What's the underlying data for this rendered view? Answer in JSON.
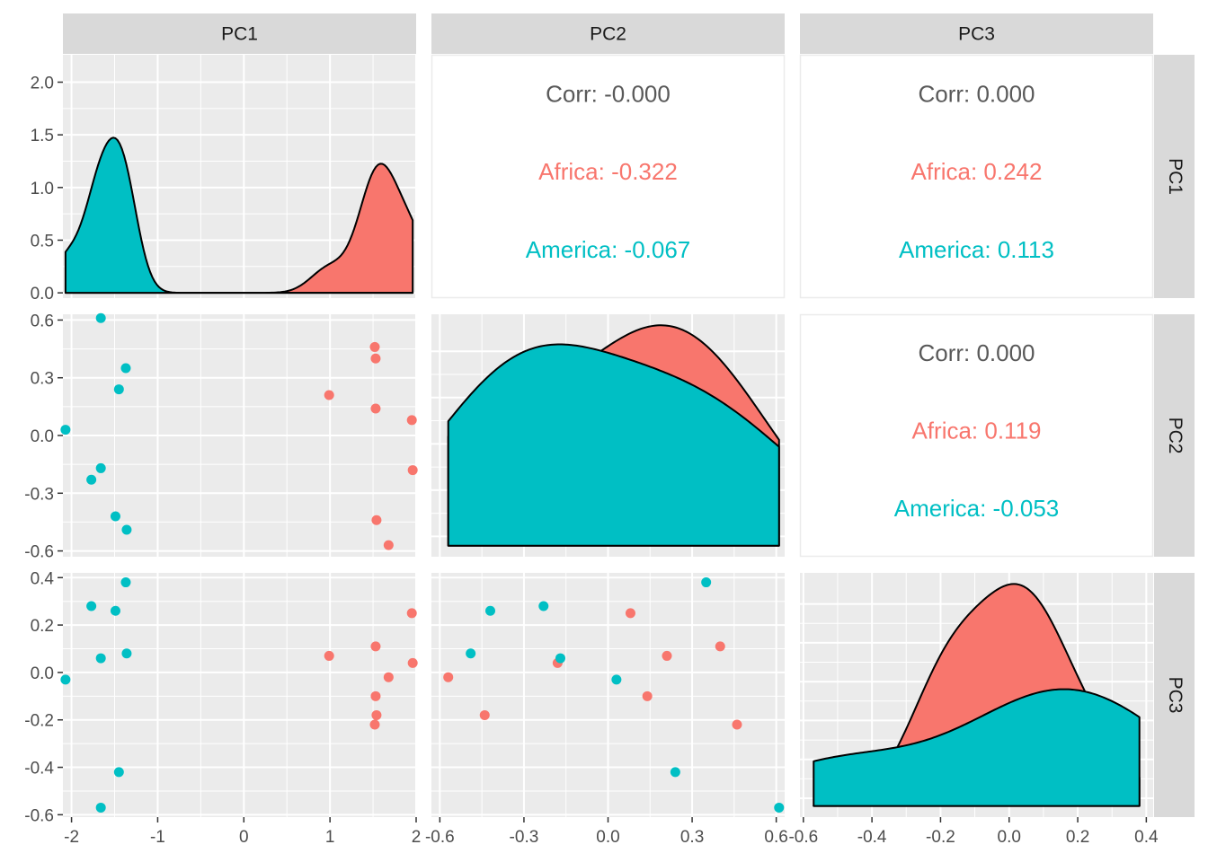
{
  "chart_data": {
    "type": "scatter",
    "variables": [
      "PC1",
      "PC2",
      "PC3"
    ],
    "groups": [
      {
        "name": "Africa",
        "color": "#F8766D"
      },
      {
        "name": "America",
        "color": "#00BFC4"
      }
    ],
    "axes": {
      "PC1": {
        "ticks": [
          -2,
          -1,
          0,
          1,
          2
        ],
        "tick_labels": [
          "-2",
          "-1",
          "0",
          "1",
          "2"
        ],
        "range": [
          -2.1,
          2.0
        ]
      },
      "PC2": {
        "ticks": [
          -0.6,
          -0.3,
          0.0,
          0.3,
          0.6
        ],
        "tick_labels": [
          "-0.6",
          "-0.3",
          "0.0",
          "0.3",
          "0.6"
        ],
        "range": [
          -0.63,
          0.63
        ]
      },
      "PC3": {
        "ticks": [
          -0.6,
          -0.4,
          -0.2,
          0.0,
          0.2,
          0.4
        ],
        "tick_labels": [
          "-0.6",
          "-0.4",
          "-0.2",
          "0.0",
          "0.2",
          "0.4"
        ],
        "range": [
          -0.61,
          0.42
        ]
      },
      "density": {
        "ticks": [
          0,
          0.5,
          1.0,
          1.5,
          2.0
        ],
        "tick_labels": [
          "0.0",
          "0.5",
          "1.0",
          "1.5",
          "2.0"
        ],
        "range": [
          -0.05,
          2.26
        ]
      }
    },
    "correlations": [
      {
        "row": "PC1",
        "col": "PC2",
        "overall": "Corr: -0.000",
        "groups": [
          "Africa: -0.322",
          "America: -0.067"
        ]
      },
      {
        "row": "PC1",
        "col": "PC3",
        "overall": "Corr: 0.000",
        "groups": [
          "Africa: 0.242",
          "America: 0.113"
        ]
      },
      {
        "row": "PC2",
        "col": "PC3",
        "overall": "Corr: 0.000",
        "groups": [
          "Africa: 0.119",
          "America: -0.053"
        ]
      }
    ],
    "points": [
      {
        "group": "Africa",
        "PC1": 0.99,
        "PC2": 0.21,
        "PC3": 0.07
      },
      {
        "group": "Africa",
        "PC1": 1.52,
        "PC2": 0.46,
        "PC3": -0.22
      },
      {
        "group": "Africa",
        "PC1": 1.53,
        "PC2": 0.4,
        "PC3": 0.11
      },
      {
        "group": "Africa",
        "PC1": 1.53,
        "PC2": 0.14,
        "PC3": -0.1
      },
      {
        "group": "Africa",
        "PC1": 1.54,
        "PC2": -0.44,
        "PC3": -0.18
      },
      {
        "group": "Africa",
        "PC1": 1.68,
        "PC2": -0.57,
        "PC3": -0.02
      },
      {
        "group": "Africa",
        "PC1": 1.95,
        "PC2": 0.08,
        "PC3": 0.25
      },
      {
        "group": "Africa",
        "PC1": 1.96,
        "PC2": -0.18,
        "PC3": 0.04
      },
      {
        "group": "America",
        "PC1": -2.07,
        "PC2": 0.03,
        "PC3": -0.03
      },
      {
        "group": "America",
        "PC1": -1.66,
        "PC2": 0.61,
        "PC3": -0.57
      },
      {
        "group": "America",
        "PC1": -1.66,
        "PC2": -0.17,
        "PC3": 0.06
      },
      {
        "group": "America",
        "PC1": -1.77,
        "PC2": -0.23,
        "PC3": 0.28
      },
      {
        "group": "America",
        "PC1": -1.49,
        "PC2": -0.42,
        "PC3": 0.26
      },
      {
        "group": "America",
        "PC1": -1.45,
        "PC2": 0.24,
        "PC3": -0.42
      },
      {
        "group": "America",
        "PC1": -1.37,
        "PC2": 0.35,
        "PC3": 0.38
      },
      {
        "group": "America",
        "PC1": -1.36,
        "PC2": -0.49,
        "PC3": 0.08
      }
    ],
    "grid": true,
    "legend": "none"
  }
}
